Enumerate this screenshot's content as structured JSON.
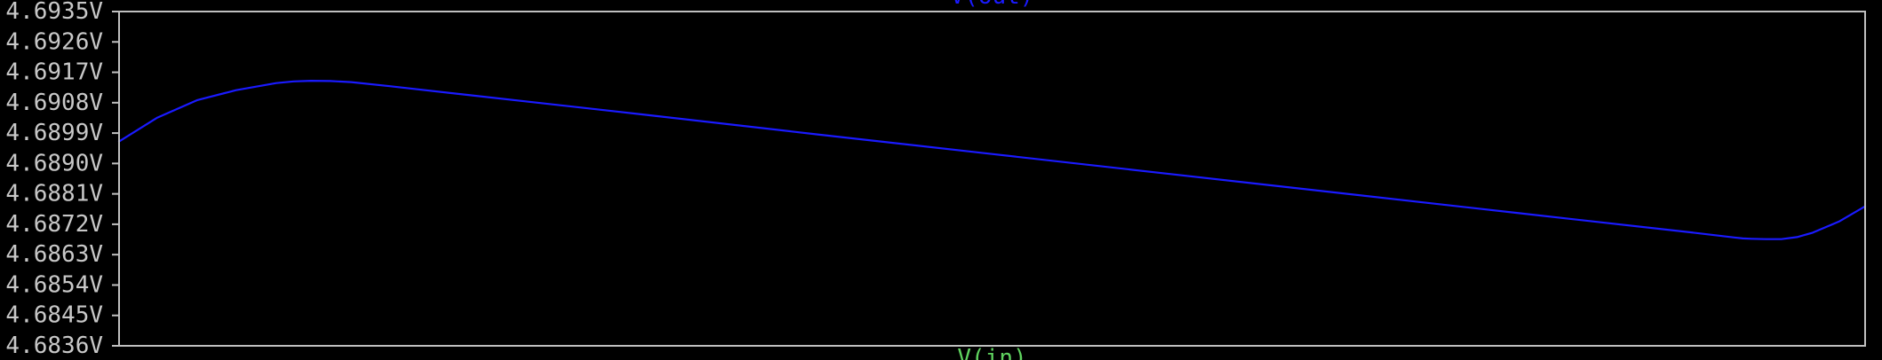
{
  "chart_data": {
    "type": "line",
    "title": "V(out)",
    "xlabel": "V(in)",
    "ylabel": "",
    "ylim": [
      4.6836,
      4.6935
    ],
    "xlim": [
      0,
      1
    ],
    "y_ticks": [
      "4.6935V",
      "4.6926V",
      "4.6917V",
      "4.6908V",
      "4.6899V",
      "4.6890V",
      "4.6881V",
      "4.6872V",
      "4.6863V",
      "4.6854V",
      "4.6845V",
      "4.6836V"
    ],
    "y_tick_values": [
      4.6935,
      4.6926,
      4.6917,
      4.6908,
      4.6899,
      4.689,
      4.6881,
      4.6872,
      4.6863,
      4.6854,
      4.6845,
      4.6836
    ],
    "grid": false,
    "series": [
      {
        "name": "V(out)",
        "color": "#1a1aff",
        "x": [
          0,
          0.022,
          0.045,
          0.067,
          0.09,
          0.1,
          0.11,
          0.121,
          0.133,
          0.155,
          0.2,
          0.3,
          0.4,
          0.5,
          0.6,
          0.7,
          0.8,
          0.9,
          0.925,
          0.93,
          0.935,
          0.943,
          0.952,
          0.961,
          0.97,
          0.985,
          1.0
        ],
        "values": [
          4.68965,
          4.69036,
          4.69088,
          4.69117,
          4.69138,
          4.69143,
          4.69145,
          4.69144,
          4.69141,
          4.69129,
          4.69103,
          4.69045,
          4.68986,
          4.68928,
          4.6887,
          4.68812,
          4.68754,
          4.68696,
          4.68681,
          4.68678,
          4.68677,
          4.68676,
          4.68676,
          4.68682,
          4.68695,
          4.68728,
          4.68773
        ]
      }
    ],
    "colors": {
      "background": "#000000",
      "frame": "#c0c0c0",
      "tick_label": "#c8c8c8",
      "title": "#1a1aff",
      "xlabel": "#5fd35f"
    }
  }
}
